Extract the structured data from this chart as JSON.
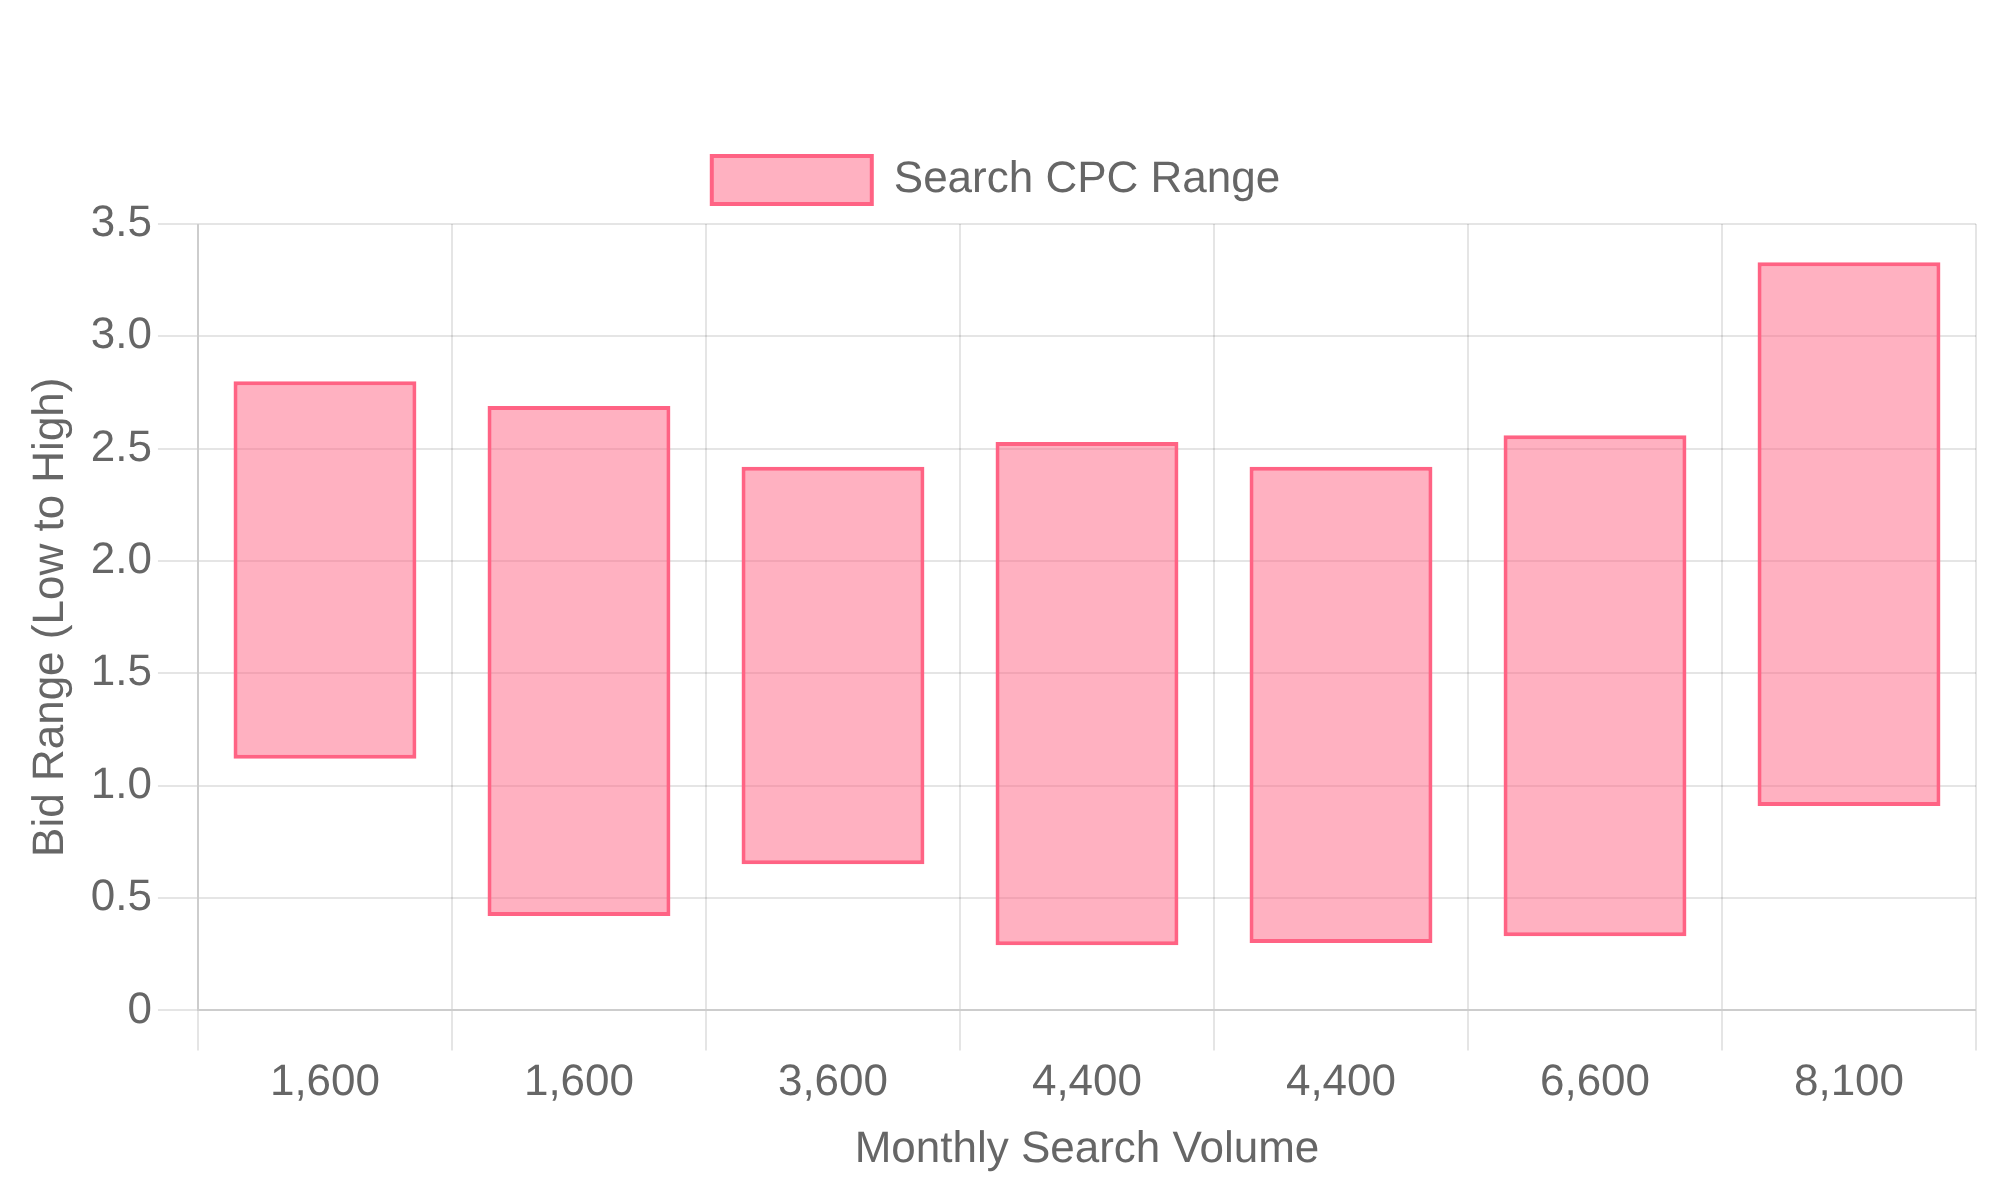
{
  "chart_data": {
    "type": "bar",
    "xlabel": "Monthly Search Volume",
    "ylabel": "Bid Range (Low to High)",
    "categories": [
      "1,600",
      "1,600",
      "3,600",
      "4,400",
      "4,400",
      "6,600",
      "8,100"
    ],
    "series": [
      {
        "name": "Search CPC Range",
        "color": "#ff6384",
        "base": [
          1.12,
          0.42,
          0.65,
          0.29,
          0.3,
          0.33,
          0.91
        ],
        "values": [
          1.68,
          2.27,
          1.77,
          2.24,
          2.12,
          2.23,
          2.42
        ]
      }
    ],
    "ylim": [
      0,
      3.5
    ],
    "yticks": [
      0,
      0.5,
      {
        "value": 1,
        "label": "1.0"
      },
      1.5,
      {
        "value": 2,
        "label": "2.0"
      },
      2.5,
      {
        "value": 3,
        "label": "3.0"
      },
      3.5
    ],
    "grid": true,
    "legend": "top"
  }
}
